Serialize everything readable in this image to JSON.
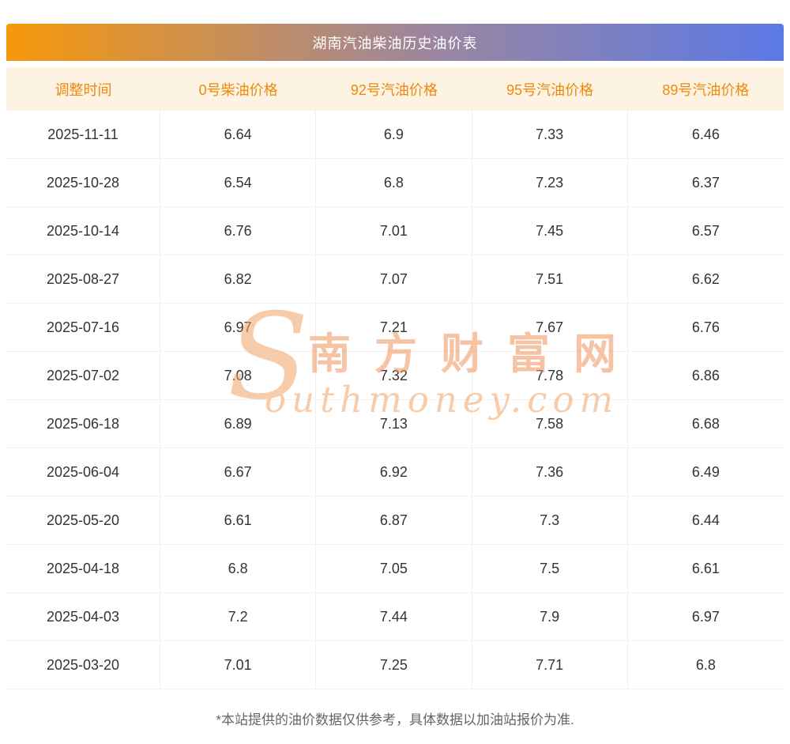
{
  "title": "湖南汽油柴油历史油价表",
  "chart_data": {
    "type": "table",
    "title": "湖南汽油柴油历史油价表",
    "columns": [
      "调整时间",
      "0号柴油价格",
      "92号汽油价格",
      "95号汽油价格",
      "89号汽油价格"
    ],
    "rows": [
      [
        "2025-11-11",
        "6.64",
        "6.9",
        "7.33",
        "6.46"
      ],
      [
        "2025-10-28",
        "6.54",
        "6.8",
        "7.23",
        "6.37"
      ],
      [
        "2025-10-14",
        "6.76",
        "7.01",
        "7.45",
        "6.57"
      ],
      [
        "2025-08-27",
        "6.82",
        "7.07",
        "7.51",
        "6.62"
      ],
      [
        "2025-07-16",
        "6.97",
        "7.21",
        "7.67",
        "6.76"
      ],
      [
        "2025-07-02",
        "7.08",
        "7.32",
        "7.78",
        "6.86"
      ],
      [
        "2025-06-18",
        "6.89",
        "7.13",
        "7.58",
        "6.68"
      ],
      [
        "2025-06-04",
        "6.67",
        "6.92",
        "7.36",
        "6.49"
      ],
      [
        "2025-05-20",
        "6.61",
        "6.87",
        "7.3",
        "6.44"
      ],
      [
        "2025-04-18",
        "6.8",
        "7.05",
        "7.5",
        "6.61"
      ],
      [
        "2025-04-03",
        "7.2",
        "7.44",
        "7.9",
        "6.97"
      ],
      [
        "2025-03-20",
        "7.01",
        "7.25",
        "7.71",
        "6.8"
      ]
    ]
  },
  "watermark": {
    "initial": "S",
    "cn": "南方财富网",
    "en": "outhmoney.com"
  },
  "footer": {
    "note": "*本站提供的油价数据仅供参考，具体数据以加油站报价为准."
  },
  "colors": {
    "title_gradient_left": "#F7980A",
    "title_gradient_right": "#5B79E6",
    "header_bg": "#FDF3E3",
    "header_text": "#ED8A0D",
    "cell_text": "#333333",
    "watermark": "#F2A365"
  }
}
